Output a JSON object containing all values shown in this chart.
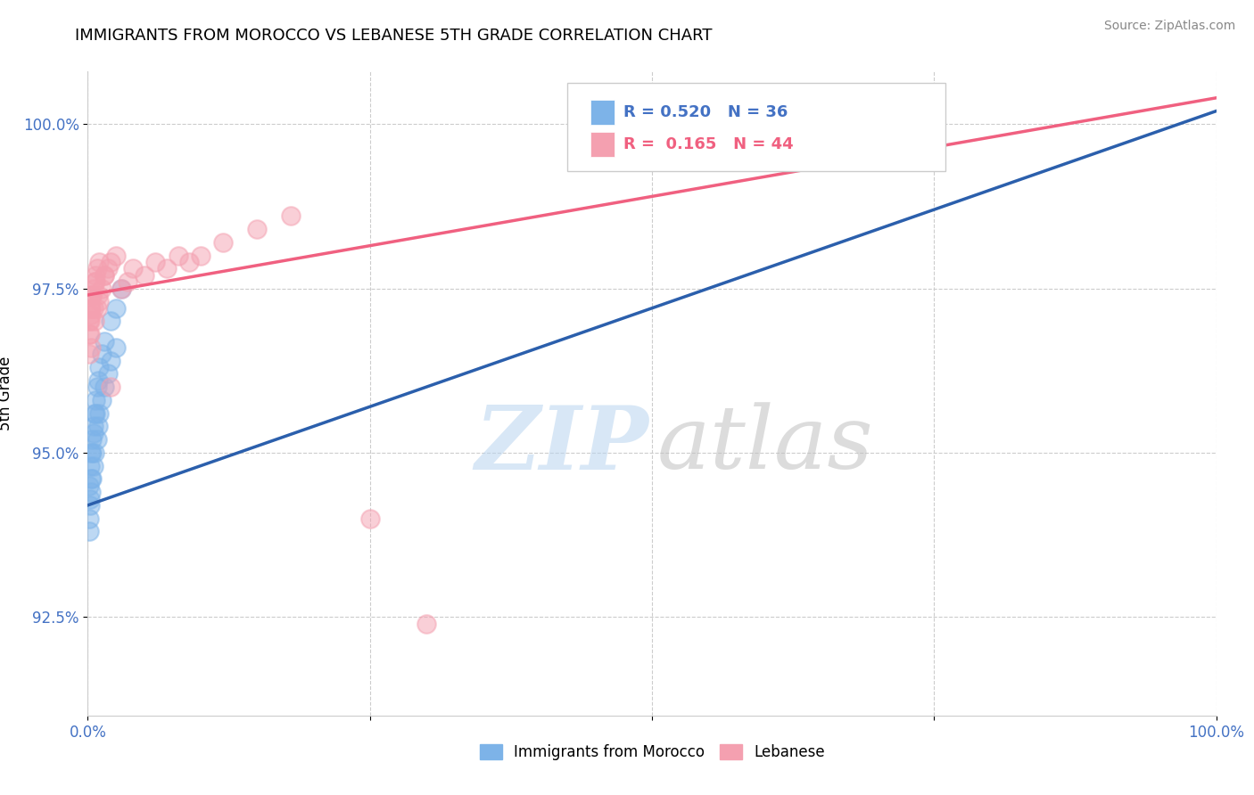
{
  "title": "IMMIGRANTS FROM MOROCCO VS LEBANESE 5TH GRADE CORRELATION CHART",
  "source": "Source: ZipAtlas.com",
  "ylabel": "5th Grade",
  "xlim": [
    0.0,
    1.0
  ],
  "ylim": [
    0.91,
    1.008
  ],
  "yticks": [
    0.925,
    0.95,
    0.975,
    1.0
  ],
  "ytick_labels": [
    "92.5%",
    "95.0%",
    "97.5%",
    "100.0%"
  ],
  "xticks": [
    0.0,
    0.25,
    0.5,
    0.75,
    1.0
  ],
  "xtick_labels": [
    "0.0%",
    "",
    "",
    "",
    "100.0%"
  ],
  "blue_label": "Immigrants from Morocco",
  "pink_label": "Lebanese",
  "blue_R": 0.52,
  "blue_N": 36,
  "pink_R": 0.165,
  "pink_N": 44,
  "blue_color": "#7db3e8",
  "pink_color": "#f4a0b0",
  "blue_line_color": "#2b5fac",
  "pink_line_color": "#f06080",
  "blue_x": [
    0.001,
    0.001,
    0.002,
    0.002,
    0.003,
    0.003,
    0.004,
    0.004,
    0.005,
    0.005,
    0.006,
    0.007,
    0.008,
    0.009,
    0.01,
    0.012,
    0.015,
    0.018,
    0.02,
    0.025,
    0.001,
    0.002,
    0.003,
    0.004,
    0.005,
    0.006,
    0.007,
    0.008,
    0.009,
    0.01,
    0.012,
    0.015,
    0.02,
    0.025,
    0.03,
    0.45
  ],
  "blue_y": [
    0.94,
    0.945,
    0.942,
    0.948,
    0.944,
    0.95,
    0.946,
    0.952,
    0.948,
    0.954,
    0.95,
    0.956,
    0.952,
    0.954,
    0.956,
    0.958,
    0.96,
    0.962,
    0.964,
    0.966,
    0.938,
    0.943,
    0.946,
    0.95,
    0.953,
    0.956,
    0.958,
    0.96,
    0.961,
    0.963,
    0.965,
    0.967,
    0.97,
    0.972,
    0.975,
    1.0
  ],
  "pink_x": [
    0.001,
    0.001,
    0.002,
    0.002,
    0.003,
    0.003,
    0.004,
    0.005,
    0.006,
    0.007,
    0.008,
    0.009,
    0.01,
    0.012,
    0.015,
    0.018,
    0.02,
    0.025,
    0.03,
    0.035,
    0.04,
    0.05,
    0.06,
    0.07,
    0.08,
    0.09,
    0.1,
    0.12,
    0.15,
    0.18,
    0.001,
    0.002,
    0.003,
    0.004,
    0.005,
    0.006,
    0.007,
    0.008,
    0.01,
    0.015,
    0.02,
    0.25,
    0.3,
    0.65
  ],
  "pink_y": [
    0.97,
    0.965,
    0.972,
    0.968,
    0.971,
    0.966,
    0.974,
    0.972,
    0.97,
    0.976,
    0.972,
    0.974,
    0.973,
    0.975,
    0.977,
    0.978,
    0.979,
    0.98,
    0.975,
    0.976,
    0.978,
    0.977,
    0.979,
    0.978,
    0.98,
    0.979,
    0.98,
    0.982,
    0.984,
    0.986,
    0.968,
    0.97,
    0.972,
    0.974,
    0.975,
    0.976,
    0.977,
    0.978,
    0.979,
    0.977,
    0.96,
    0.94,
    0.924,
    1.0
  ]
}
